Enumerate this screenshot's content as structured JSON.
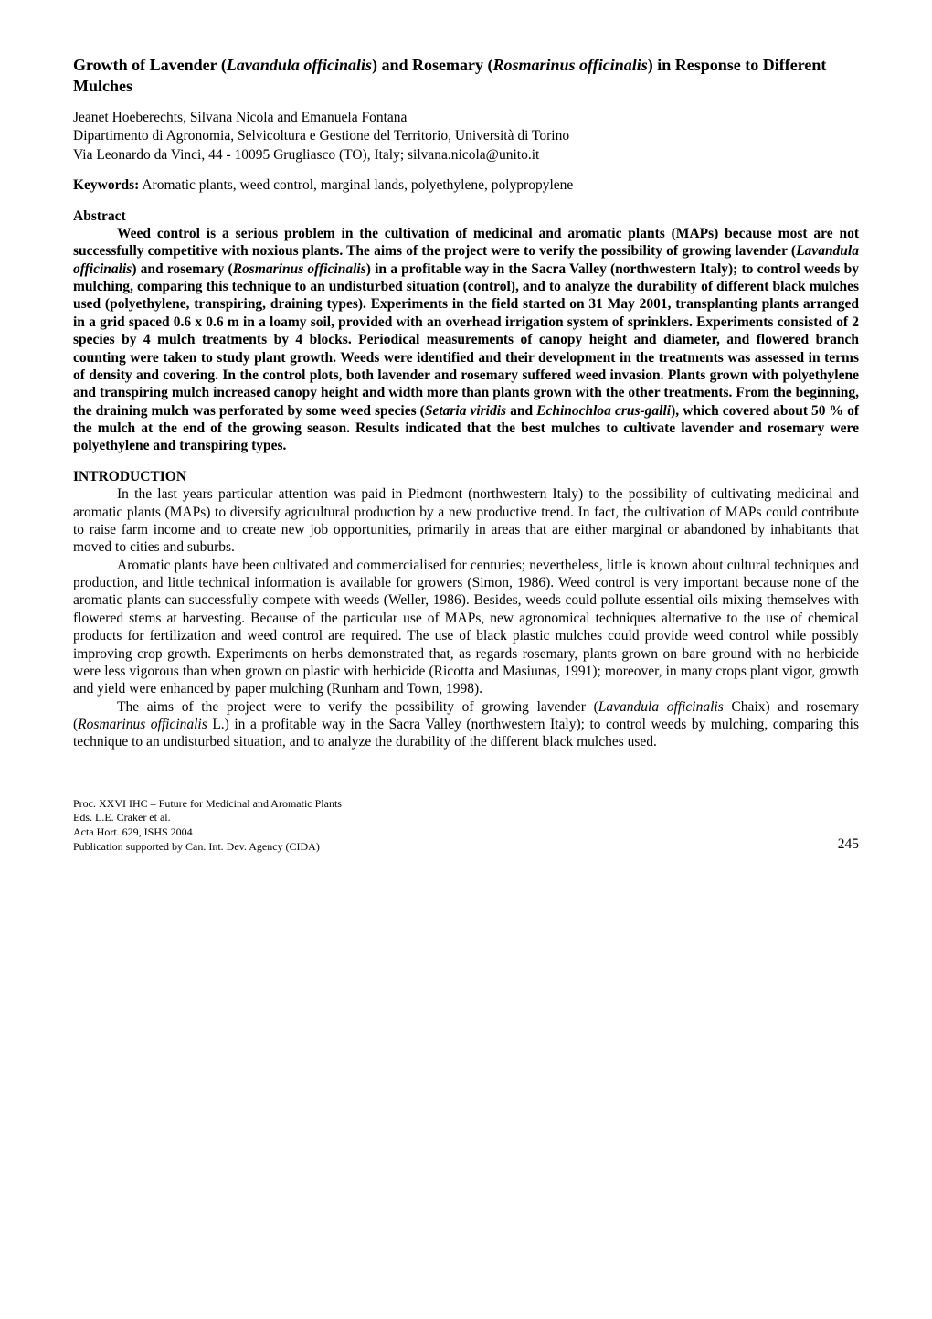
{
  "title": {
    "prefix": "Growth of Lavender (",
    "species1": "Lavandula officinalis",
    "mid": ") and Rosemary (",
    "species2": "Rosmarinus officinalis",
    "suffix": ") in Response to Different Mulches"
  },
  "authors": "Jeanet Hoeberechts, Silvana Nicola and Emanuela Fontana",
  "affiliation": "Dipartimento di Agronomia, Selvicoltura e Gestione del Territorio, Università di Torino",
  "address": "Via Leonardo da Vinci, 44 - 10095 Grugliasco (TO), Italy; silvana.nicola@unito.it",
  "keywords": {
    "label": "Keywords:",
    "text": " Aromatic plants, weed control, marginal lands, polyethylene, polypropylene"
  },
  "abstract": {
    "heading": "Abstract",
    "p1_a": "Weed control is a serious problem in the cultivation of medicinal and aromatic plants (MAPs) because most are not successfully competitive with noxious plants. The aims of the project were to verify the possibility of growing lavender (",
    "p1_sp1": "Lavandula officinalis",
    "p1_b": ") and rosemary (",
    "p1_sp2": "Rosmarinus officinalis",
    "p1_c": ") in a profitable way in the Sacra Valley (northwestern Italy); to control weeds by mulching, comparing this technique to an undisturbed situation (control), and to analyze the durability of different black mulches used (polyethylene, transpiring, draining types). Experiments in the field started on 31 May 2001, transplanting plants arranged in a grid spaced 0.6 x 0.6 m in a loamy soil, provided with an overhead irrigation system of sprinklers. Experiments consisted of 2 species by 4 mulch treatments by 4 blocks. Periodical measurements of canopy height and diameter, and flowered branch counting were taken to study plant growth. Weeds were identified and their development in the treatments was assessed in terms of density and covering. In the control plots, both lavender and rosemary suffered weed invasion. Plants grown with polyethylene and transpiring mulch increased canopy height and width more than plants grown with the other treatments. From the beginning, the draining mulch was perforated by some weed species (",
    "p1_sp3": "Setaria viridis",
    "p1_d": " and ",
    "p1_sp4": "Echinochloa crus-galli",
    "p1_e": "), which covered about 50 % of the mulch at the end of the growing season. Results indicated that the best mulches to cultivate lavender and rosemary were polyethylene and transpiring types."
  },
  "introduction": {
    "heading": "INTRODUCTION",
    "p1": "In the last years particular attention was paid in Piedmont (northwestern Italy) to the possibility of cultivating medicinal and aromatic plants (MAPs) to diversify agricultural production by a new productive trend. In fact, the cultivation of MAPs could contribute to raise farm income and to create new job opportunities, primarily in areas that are either marginal or abandoned by inhabitants that moved to cities and suburbs.",
    "p2": "Aromatic plants have been cultivated and commercialised for centuries; nevertheless, little is known about cultural techniques and production, and little technical information is available for growers (Simon, 1986). Weed control is very important because none of the aromatic plants can successfully compete with weeds (Weller, 1986). Besides, weeds could pollute essential oils mixing themselves with flowered stems at harvesting. Because of the particular use of MAPs, new agronomical techniques alternative to the use of chemical products for fertilization and weed control are required. The use of black plastic mulches could provide weed control while possibly improving crop growth. Experiments on herbs demonstrated that, as regards rosemary, plants grown on bare ground with no herbicide were less vigorous than when grown on plastic with herbicide (Ricotta and Masiunas, 1991); moreover, in many crops plant vigor, growth and yield were enhanced by paper mulching (Runham and Town, 1998).",
    "p3_a": "The aims of the project were to verify the possibility of growing lavender (",
    "p3_sp1": "Lavandula officinalis",
    "p3_b": " Chaix) and rosemary (",
    "p3_sp2": "Rosmarinus officinalis",
    "p3_c": " L.) in a profitable way in the Sacra Valley (northwestern Italy); to control weeds by mulching, comparing this technique to an undisturbed situation, and to analyze the durability of the different black mulches used."
  },
  "footer": {
    "line1": "Proc. XXVI  IHC – Future for Medicinal and Aromatic Plants",
    "line2": "Eds. L.E. Craker et al.",
    "line3": "Acta Hort. 629, ISHS 2004",
    "line4": "Publication supported by Can. Int. Dev. Agency (CIDA)",
    "page_number": "245"
  }
}
